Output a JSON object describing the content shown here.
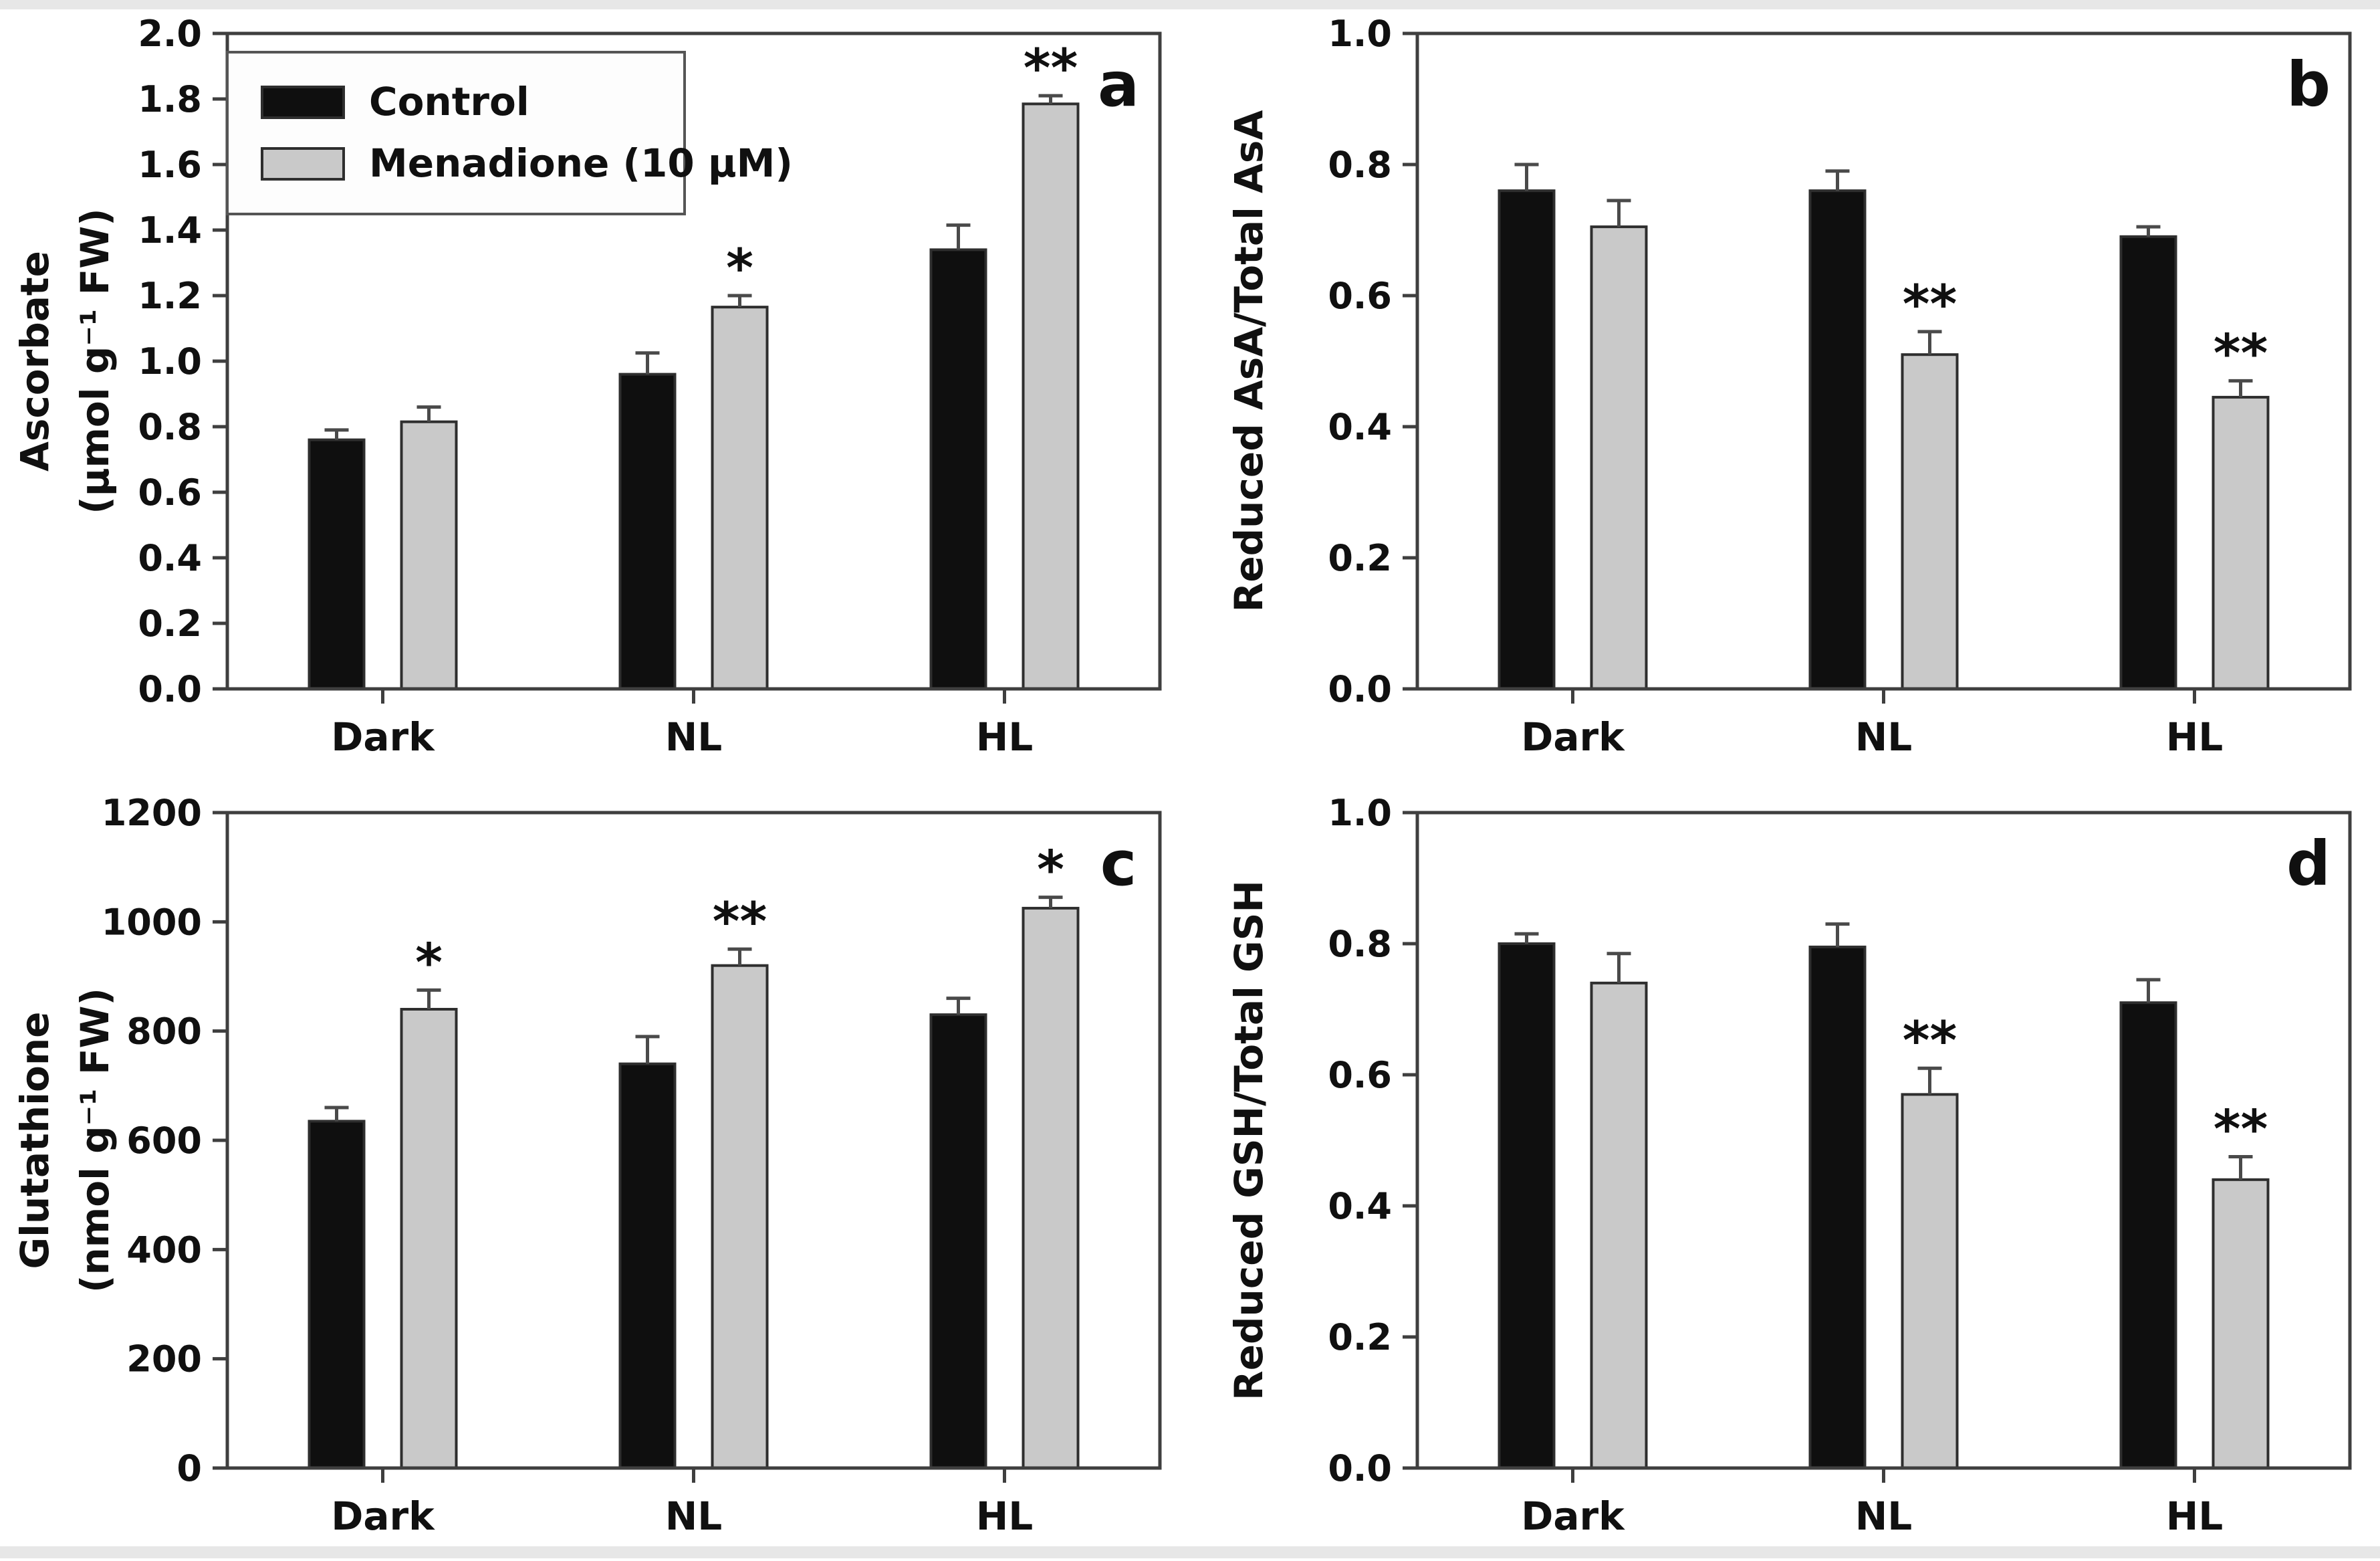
{
  "figure": {
    "background": "#ffffff",
    "colors": {
      "control_fill": "#0f0f0f",
      "menadione_fill": "#c9c9c9",
      "bar_border": "#2e2e2e",
      "axis": "#3f3f3f",
      "error_bar": "#4a4a4a",
      "text": "#101010",
      "legend_border": "#555555",
      "legend_fill": "#fdfdfd"
    },
    "legend": {
      "shown_on_panel": "a",
      "position": "top-left",
      "items": [
        {
          "label": "Control",
          "swatch": "control_fill",
          "swatch_name": "control-swatch"
        },
        {
          "label": "Menadione (10 μM)",
          "swatch": "menadione_fill",
          "swatch_name": "menadione-swatch"
        }
      ]
    }
  },
  "chart_data": [
    {
      "panel": "a",
      "type": "bar",
      "title": "",
      "ylabel_lines": [
        "Ascorbate",
        "(μmol g⁻¹ FW)"
      ],
      "xlabel": "",
      "categories": [
        "Dark",
        "NL",
        "HL"
      ],
      "ylim": [
        0,
        2.0
      ],
      "ytick_step": 0.2,
      "ytick_decimals": 1,
      "yticks": [
        "0.0",
        "0.2",
        "0.4",
        "0.6",
        "0.8",
        "1.0",
        "1.2",
        "1.4",
        "1.6",
        "1.8",
        "2.0"
      ],
      "grid": false,
      "legend_position": "top-left",
      "show_legend": true,
      "series": [
        {
          "name": "Control",
          "values": [
            0.76,
            0.96,
            1.34
          ],
          "errors": [
            0.03,
            0.065,
            0.075
          ],
          "sig": [
            "",
            "",
            ""
          ]
        },
        {
          "name": "Menadione (10 μM)",
          "values": [
            0.815,
            1.165,
            1.785
          ],
          "errors": [
            0.045,
            0.035,
            0.025
          ],
          "sig": [
            "",
            "*",
            "**"
          ]
        }
      ]
    },
    {
      "panel": "b",
      "type": "bar",
      "title": "",
      "ylabel_lines": [
        "Reduced AsA/Total AsA"
      ],
      "xlabel": "",
      "categories": [
        "Dark",
        "NL",
        "HL"
      ],
      "ylim": [
        0,
        1.0
      ],
      "ytick_step": 0.2,
      "ytick_decimals": 1,
      "yticks": [
        "0.0",
        "0.2",
        "0.4",
        "0.6",
        "0.8",
        "1.0"
      ],
      "grid": false,
      "show_legend": false,
      "series": [
        {
          "name": "Control",
          "values": [
            0.76,
            0.76,
            0.69
          ],
          "errors": [
            0.04,
            0.03,
            0.015
          ],
          "sig": [
            "",
            "",
            ""
          ]
        },
        {
          "name": "Menadione (10 μM)",
          "values": [
            0.705,
            0.51,
            0.445
          ],
          "errors": [
            0.04,
            0.035,
            0.025
          ],
          "sig": [
            "",
            "**",
            "**"
          ]
        }
      ]
    },
    {
      "panel": "c",
      "type": "bar",
      "title": "",
      "ylabel_lines": [
        "Glutathione",
        "(nmol g⁻¹ FW)"
      ],
      "xlabel": "",
      "categories": [
        "Dark",
        "NL",
        "HL"
      ],
      "ylim": [
        0,
        1200
      ],
      "ytick_step": 200,
      "ytick_decimals": 0,
      "yticks": [
        "0",
        "200",
        "400",
        "600",
        "800",
        "1000",
        "1200"
      ],
      "grid": false,
      "show_legend": false,
      "series": [
        {
          "name": "Control",
          "values": [
            635,
            740,
            830
          ],
          "errors": [
            25,
            50,
            30
          ],
          "sig": [
            "",
            "",
            ""
          ]
        },
        {
          "name": "Menadione (10 μM)",
          "values": [
            840,
            920,
            1025
          ],
          "errors": [
            35,
            30,
            20
          ],
          "sig": [
            "*",
            "**",
            "*"
          ]
        }
      ]
    },
    {
      "panel": "d",
      "type": "bar",
      "title": "",
      "ylabel_lines": [
        "Reduced GSH/Total GSH"
      ],
      "xlabel": "",
      "categories": [
        "Dark",
        "NL",
        "HL"
      ],
      "ylim": [
        0,
        1.0
      ],
      "ytick_step": 0.2,
      "ytick_decimals": 1,
      "yticks": [
        "0.0",
        "0.2",
        "0.4",
        "0.6",
        "0.8",
        "1.0"
      ],
      "grid": false,
      "show_legend": false,
      "series": [
        {
          "name": "Control",
          "values": [
            0.8,
            0.795,
            0.71
          ],
          "errors": [
            0.015,
            0.035,
            0.035
          ],
          "sig": [
            "",
            "",
            ""
          ]
        },
        {
          "name": "Menadione (10 μM)",
          "values": [
            0.74,
            0.57,
            0.44
          ],
          "errors": [
            0.045,
            0.04,
            0.035
          ],
          "sig": [
            "",
            "**",
            "**"
          ]
        }
      ]
    }
  ]
}
